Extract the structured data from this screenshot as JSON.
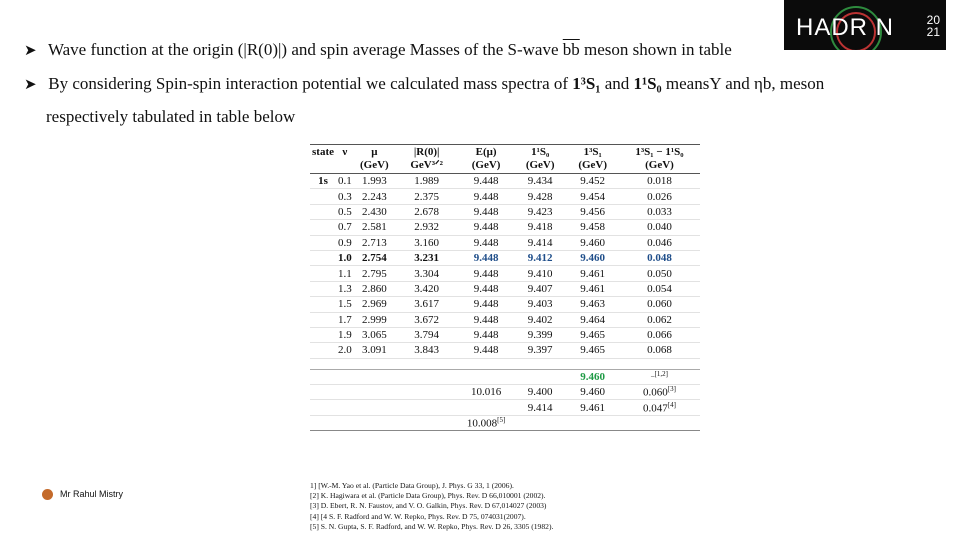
{
  "bullets": {
    "b1_pre": "Wave function at the origin (|R(0)|) and spin average Masses of the S-wave ",
    "b1_bb": "bb",
    "b1_post": " meson shown in table",
    "b2_pre": "By considering Spin-spin interaction potential we calculated mass spectra of ",
    "b2_s1": "1³S₁",
    "b2_and": " and ",
    "b2_s0": "1¹S₀",
    "b2_post": " meansΥ and ηb, meson",
    "b2_cont": "respectively tabulated in   table below"
  },
  "logo": {
    "text": "HADR   N",
    "year_top": "20",
    "year_bottom": "21"
  },
  "table": {
    "headers": [
      "state",
      "ν",
      "μ (GeV)",
      "|R(0)| GeV³ᐟ²",
      "E(μ) (GeV)",
      "1¹S₀ (GeV)",
      "1³S₁ (GeV)",
      "1³S₁ − 1¹S₀ (GeV)"
    ],
    "rows": [
      [
        "1s",
        "0.1",
        "1.993",
        "1.989",
        "9.448",
        "9.434",
        "9.452",
        "0.018"
      ],
      [
        "",
        "0.3",
        "2.243",
        "2.375",
        "9.448",
        "9.428",
        "9.454",
        "0.026"
      ],
      [
        "",
        "0.5",
        "2.430",
        "2.678",
        "9.448",
        "9.423",
        "9.456",
        "0.033"
      ],
      [
        "",
        "0.7",
        "2.581",
        "2.932",
        "9.448",
        "9.418",
        "9.458",
        "0.040"
      ],
      [
        "",
        "0.9",
        "2.713",
        "3.160",
        "9.448",
        "9.414",
        "9.460",
        "0.046"
      ],
      [
        "",
        "1.0",
        "2.754",
        "3.231",
        "9.448",
        "9.412",
        "9.460",
        "0.048"
      ],
      [
        "",
        "1.1",
        "2.795",
        "3.304",
        "9.448",
        "9.410",
        "9.461",
        "0.050"
      ],
      [
        "",
        "1.3",
        "2.860",
        "3.420",
        "9.448",
        "9.407",
        "9.461",
        "0.054"
      ],
      [
        "",
        "1.5",
        "2.969",
        "3.617",
        "9.448",
        "9.403",
        "9.463",
        "0.060"
      ],
      [
        "",
        "1.7",
        "2.999",
        "3.672",
        "9.448",
        "9.402",
        "9.464",
        "0.062"
      ],
      [
        "",
        "1.9",
        "3.065",
        "3.794",
        "9.448",
        "9.399",
        "9.465",
        "0.066"
      ],
      [
        "",
        "2.0",
        "3.091",
        "3.843",
        "9.448",
        "9.397",
        "9.465",
        "0.068"
      ]
    ],
    "ref_rows": {
      "r1_s1": "9.460",
      "r1_ref": "_[1,2]",
      "r2_e": "10.016",
      "r2_s0": "9.400",
      "r2_s1": "9.460",
      "r2_diff": "0.060",
      "r2_ref": "[3]",
      "r3_s0": "9.414",
      "r3_s1": "9.461",
      "r3_diff": "0.047",
      "r3_ref": "[4]",
      "r4_e": "10.008",
      "r4_ref": "[5]"
    }
  },
  "references": [
    "1] [W.-M. Yao et al. (Particle Data Group), J. Phys. G 33, 1 (2006).",
    "[2] K. Hagiwara et al. (Particle Data Group), Phys. Rev. D 66,010001 (2002).",
    "[3] D. Ebert, R. N. Faustov, and V. O. Galkin, Phys. Rev. D 67,014027 (2003)",
    "[4] [4 S. F. Radford and W. W. Repko, Phys. Rev. D 75, 074031(2007).",
    "[5] S. N. Gupta, S. F. Radford, and W. W. Repko, Phys. Rev. D 26, 3305 (1982)."
  ],
  "author": "Mr Rahul Mistry"
}
